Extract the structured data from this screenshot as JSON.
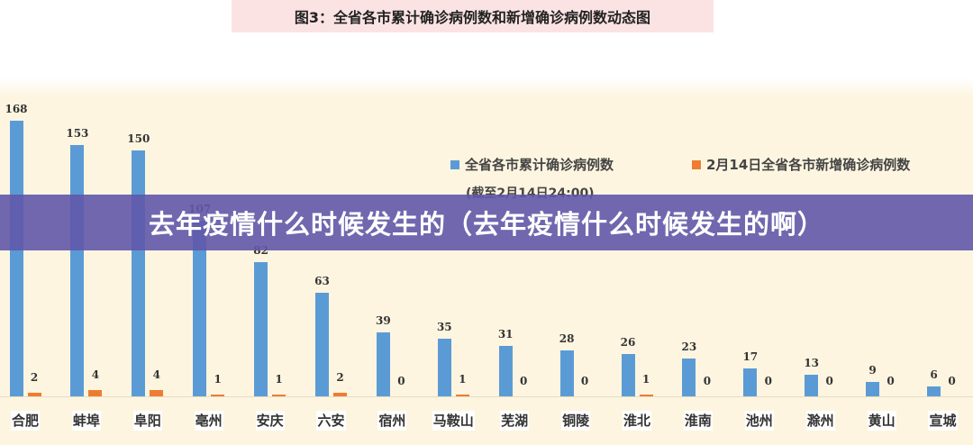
{
  "header": {
    "figure_title": "图3：全省各市累计确诊病例数和新增确诊病例数动态图"
  },
  "banner": {
    "text": "去年疫情什么时候发生的（去年疫情什么时候发生的啊）"
  },
  "legend": {
    "series1": "全省各市累计确诊病例数",
    "series2": "2月14日全省各市新增确诊病例数",
    "note": "(截至2月14日24:00)"
  },
  "colors": {
    "cumulative": "#5b9bd5",
    "new": "#ed7d31",
    "chart_background": "#fdf5e0",
    "title_background": "#fbe3e3",
    "banner_background": "#6058aa"
  },
  "chart_data": {
    "type": "bar",
    "title": "图3：全省各市累计确诊病例数和新增确诊病例数动态图",
    "subtitle": "(截至2月14日24:00)",
    "xlabel": "",
    "ylabel": "",
    "categories": [
      "合肥",
      "蚌埠",
      "阜阳",
      "亳州",
      "安庆",
      "六安",
      "宿州",
      "马鞍山",
      "芜湖",
      "铜陵",
      "淮北",
      "淮南",
      "池州",
      "滁州",
      "黄山",
      "宣城"
    ],
    "series": [
      {
        "name": "全省各市累计确诊病例数",
        "color": "#5b9bd5",
        "values": [
          168,
          153,
          150,
          107,
          82,
          63,
          39,
          35,
          31,
          28,
          26,
          23,
          17,
          13,
          9,
          6
        ]
      },
      {
        "name": "2月14日全省各市新增确诊病例数",
        "color": "#ed7d31",
        "values": [
          2,
          4,
          4,
          1,
          1,
          2,
          0,
          1,
          0,
          0,
          1,
          0,
          0,
          0,
          0,
          0
        ]
      }
    ],
    "ylim": [
      0,
      170
    ],
    "grid": false,
    "legend_position": "upper right",
    "data_labels": true
  }
}
